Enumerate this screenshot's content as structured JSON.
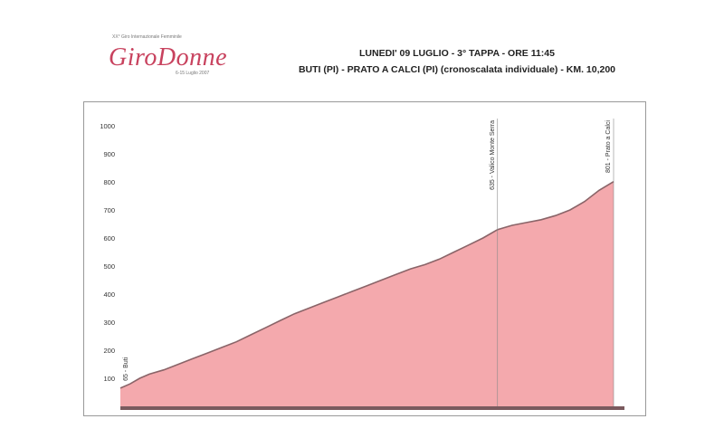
{
  "logo": {
    "top_text": "XX° Giro Internazionale Femminile",
    "wordmark": "GiroDonne",
    "dates": "6-15 Luglio 2007"
  },
  "header": {
    "line1": "LUNEDI' 09 LUGLIO - 3° TAPPA - ORE 11:45",
    "line2": "BUTI (PI) - PRATO A CALCI (PI) (cronoscalata individuale) - KM. 10,200"
  },
  "colors": {
    "fill": "#f4a9ad",
    "line": "#8a6468",
    "base": "#7a5a5e",
    "logo": "#c8425e"
  },
  "chart_data": {
    "type": "area",
    "title": "",
    "xlabel": "",
    "ylabel": "",
    "xlim": [
      0,
      10.2
    ],
    "ylim": [
      0,
      1000
    ],
    "yticks": [
      "1000",
      "900",
      "800",
      "700",
      "600",
      "500",
      "400",
      "300",
      "200",
      "100"
    ],
    "x": [
      0,
      0.2,
      0.4,
      0.6,
      0.9,
      1.2,
      1.5,
      1.8,
      2.1,
      2.4,
      2.7,
      3.0,
      3.3,
      3.6,
      3.9,
      4.2,
      4.5,
      4.8,
      5.1,
      5.4,
      5.7,
      6.0,
      6.3,
      6.6,
      6.9,
      7.2,
      7.5,
      7.8,
      8.1,
      8.4,
      8.7,
      9.0,
      9.3,
      9.6,
      9.9,
      10.2
    ],
    "y": [
      65,
      80,
      100,
      115,
      130,
      150,
      170,
      190,
      210,
      230,
      255,
      280,
      305,
      330,
      350,
      370,
      390,
      410,
      430,
      450,
      470,
      490,
      505,
      525,
      550,
      575,
      600,
      630,
      645,
      655,
      665,
      680,
      700,
      730,
      770,
      801
    ],
    "annotations": [
      {
        "x": 0,
        "label": "65 - Buti"
      },
      {
        "x": 7.8,
        "label": "635 - Valico Monte Serra"
      },
      {
        "x": 10.2,
        "label": "801 - Prato a Calci"
      }
    ]
  }
}
